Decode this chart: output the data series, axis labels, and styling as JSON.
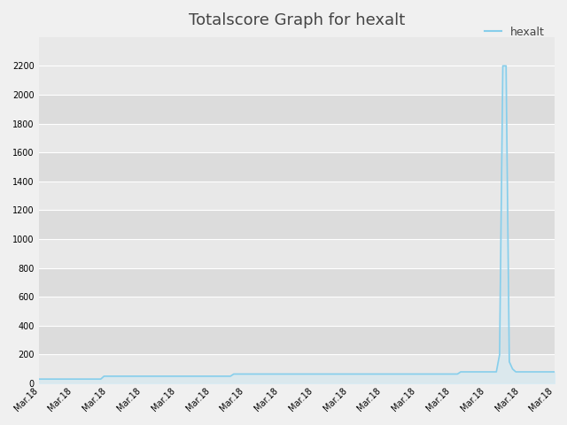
{
  "title": "Totalscore Graph for hexalt",
  "legend_label": "hexalt",
  "background_color": "#f0f0f0",
  "plot_bg_color": "#e8e8e8",
  "line_color": "#87ceeb",
  "fill_color": "#c5e8f7",
  "x_labels": [
    "Mar.18",
    "Mar.18",
    "Mar.18",
    "Mar.18",
    "Mar.18",
    "Mar.18",
    "Mar.18",
    "Mar.18",
    "Mar.18",
    "Mar.18",
    "Mar.18",
    "Mar.18",
    "Mar.18",
    "Mar.18",
    "Mar.18",
    "Mar.18"
  ],
  "n_points": 150,
  "y_data": [
    30,
    30,
    30,
    30,
    30,
    30,
    30,
    30,
    30,
    30,
    30,
    30,
    30,
    30,
    30,
    30,
    30,
    30,
    30,
    30,
    50,
    50,
    50,
    50,
    50,
    50,
    50,
    50,
    50,
    50,
    50,
    50,
    50,
    50,
    50,
    50,
    50,
    50,
    50,
    50,
    50,
    50,
    50,
    50,
    50,
    50,
    50,
    50,
    50,
    50,
    50,
    50,
    50,
    50,
    50,
    50,
    50,
    50,
    50,
    50,
    65,
    65,
    65,
    65,
    65,
    65,
    65,
    65,
    65,
    65,
    65,
    65,
    65,
    65,
    65,
    65,
    65,
    65,
    65,
    65,
    65,
    65,
    65,
    65,
    65,
    65,
    65,
    65,
    65,
    65,
    65,
    65,
    65,
    65,
    65,
    65,
    65,
    65,
    65,
    65,
    65,
    65,
    65,
    65,
    65,
    65,
    65,
    65,
    65,
    65,
    65,
    65,
    65,
    65,
    65,
    65,
    65,
    65,
    65,
    65,
    65,
    65,
    65,
    65,
    65,
    65,
    65,
    65,
    65,
    65,
    80,
    80,
    80,
    80,
    80,
    80,
    80,
    80,
    80,
    80,
    80,
    80,
    200,
    2200,
    2200,
    150,
    100,
    80,
    80,
    80,
    80,
    80,
    80,
    80,
    80,
    80,
    80,
    80,
    80,
    80
  ],
  "ylim_min": 0,
  "ylim_max": 2400,
  "yticks": [
    0,
    200,
    400,
    600,
    800,
    1000,
    1200,
    1400,
    1600,
    1800,
    2000,
    2200
  ],
  "title_fontsize": 13,
  "tick_fontsize": 7,
  "legend_fontsize": 9,
  "band_colors": [
    "#e8e8e8",
    "#dcdcdc"
  ],
  "line_width": 1.2,
  "fill_alpha": 0.35
}
